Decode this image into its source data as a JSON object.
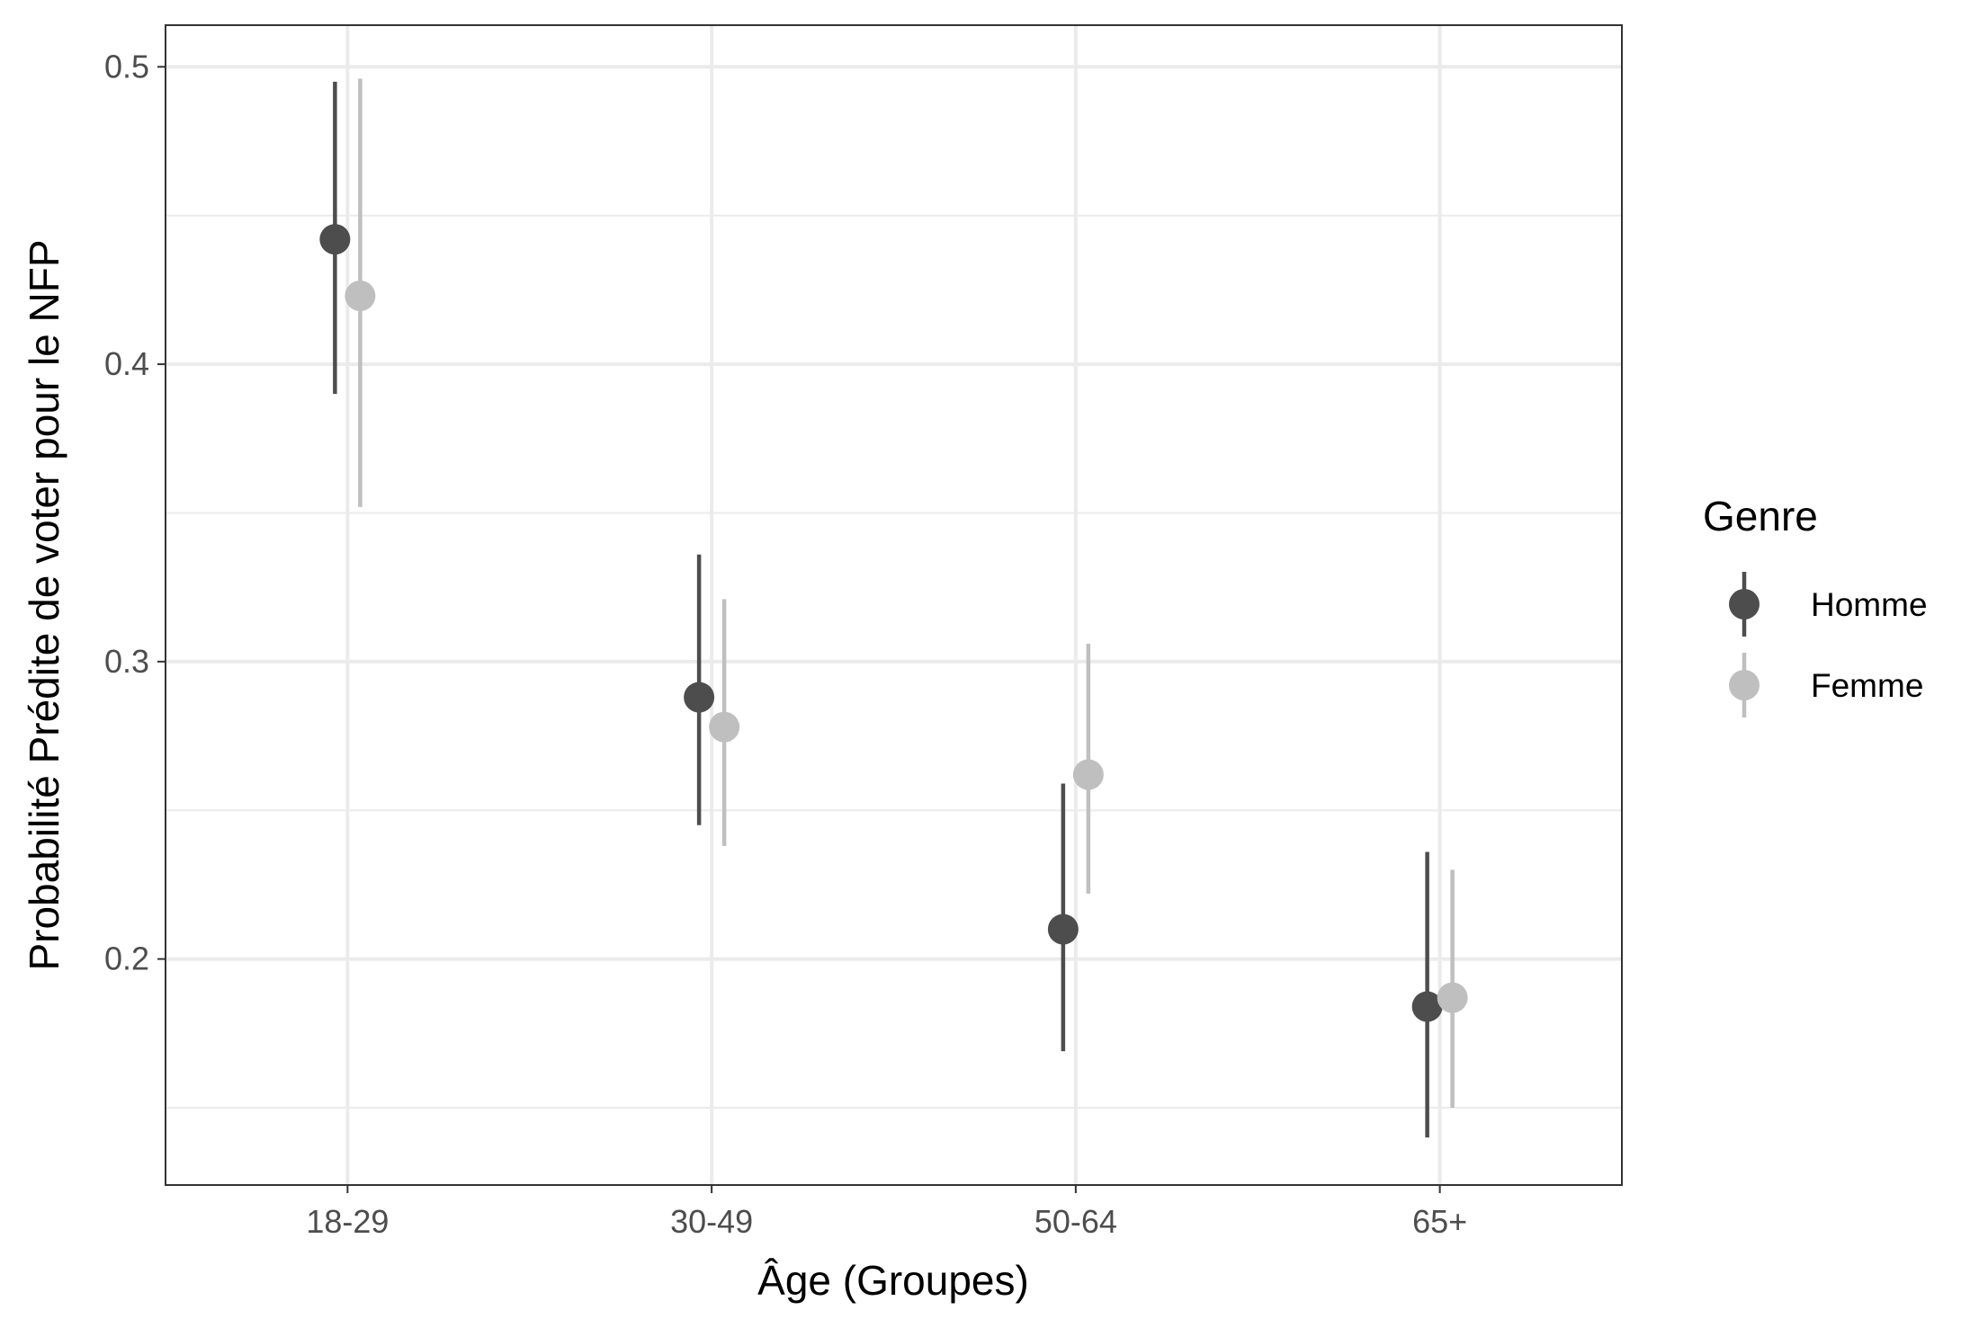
{
  "chart_data": {
    "type": "scatter",
    "subtype": "pointrange",
    "xlabel": "Âge (Groupes)",
    "ylabel": "Probabilité Prédite de voter pour le NFP",
    "categories": [
      "18-29",
      "30-49",
      "50-64",
      "65+"
    ],
    "ylim": [
      0.124,
      0.514
    ],
    "yticks": [
      0.2,
      0.3,
      0.4,
      0.5
    ],
    "ytick_labels": [
      "0.2",
      "0.3",
      "0.4",
      "0.5"
    ],
    "grid": true,
    "legend": {
      "title": "Genre",
      "placement": "right"
    },
    "series": [
      {
        "name": "Homme",
        "color": "#4d4d4d",
        "values": [
          0.442,
          0.288,
          0.21,
          0.184
        ],
        "lower": [
          0.39,
          0.245,
          0.169,
          0.14
        ],
        "upper": [
          0.495,
          0.336,
          0.259,
          0.236
        ]
      },
      {
        "name": "Femme",
        "color": "#bfbfbf",
        "values": [
          0.423,
          0.278,
          0.262,
          0.187
        ],
        "lower": [
          0.352,
          0.238,
          0.222,
          0.15
        ],
        "upper": [
          0.496,
          0.321,
          0.306,
          0.23
        ]
      }
    ]
  }
}
